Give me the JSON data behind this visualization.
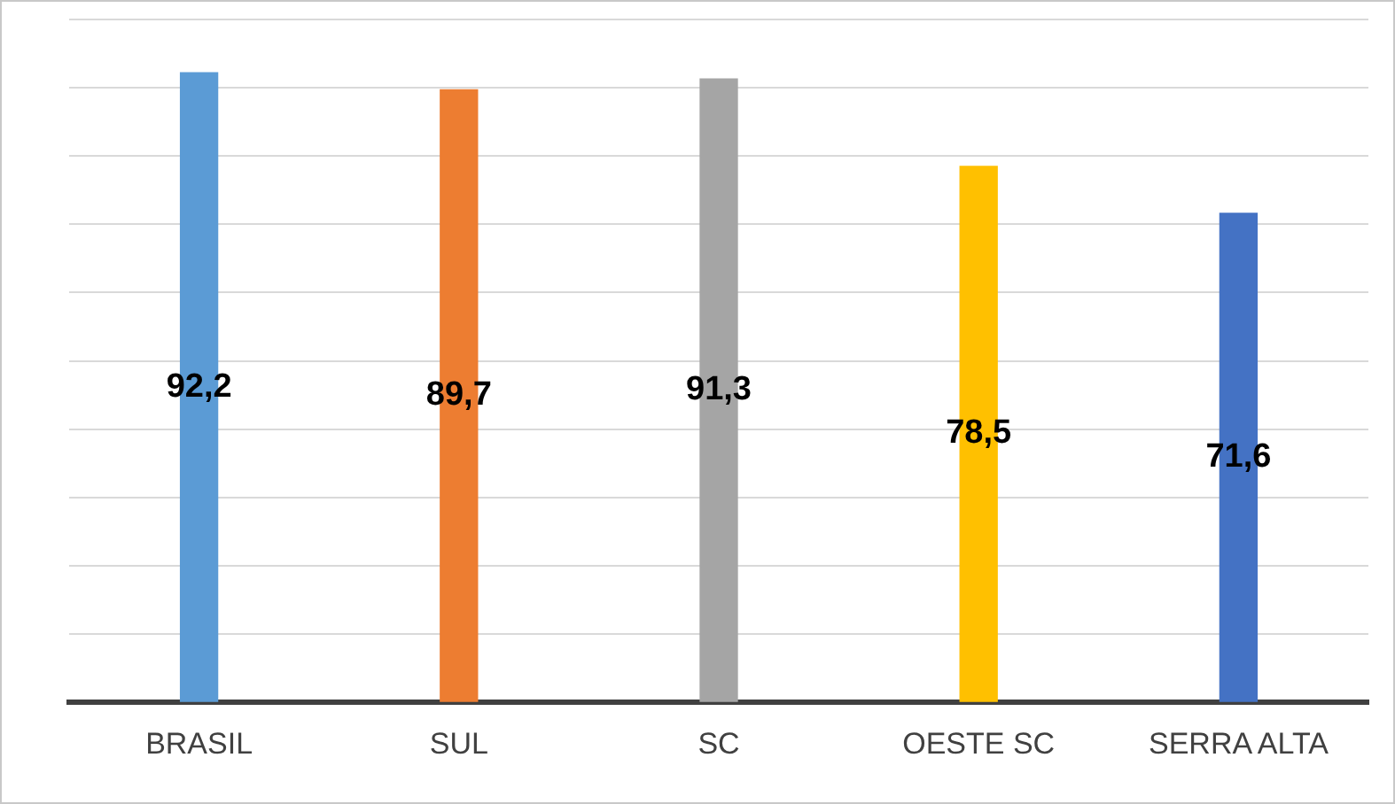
{
  "chart_data": {
    "type": "bar",
    "categories": [
      "BRASIL",
      "SUL",
      "SC",
      "OESTE SC",
      "SERRA ALTA"
    ],
    "values": [
      92.2,
      89.7,
      91.3,
      78.5,
      71.6
    ],
    "colors": [
      "#5b9bd5",
      "#ed7d31",
      "#a5a5a5",
      "#ffc000",
      "#4472c4"
    ],
    "value_labels": [
      "92,2",
      "89,7",
      "91,3",
      "78,5",
      "71,6"
    ],
    "ylim": [
      0,
      100
    ],
    "yticks": [
      {
        "value": 0,
        "label": null
      },
      {
        "value": 10,
        "label": null
      },
      {
        "value": 20,
        "label": null
      },
      {
        "value": 30,
        "label": null
      },
      {
        "value": 40,
        "label": null
      },
      {
        "value": 50,
        "label": null
      },
      {
        "value": 60,
        "label": null
      },
      {
        "value": 70,
        "label": null
      },
      {
        "value": 80,
        "label": null
      },
      {
        "value": 90,
        "label": null
      },
      {
        "value": 100,
        "label": null
      }
    ],
    "grid": "y",
    "tick_labels": "x",
    "legend": false
  }
}
